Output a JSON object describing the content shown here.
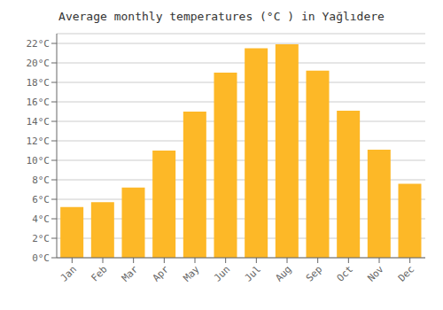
{
  "chart_data": {
    "type": "bar",
    "title": "Average monthly temperatures (°C ) in Yağlıdere",
    "categories": [
      "Jan",
      "Feb",
      "Mar",
      "Apr",
      "May",
      "Jun",
      "Jul",
      "Aug",
      "Sep",
      "Oct",
      "Nov",
      "Dec"
    ],
    "values": [
      5.2,
      5.7,
      7.2,
      11.0,
      15.0,
      19.0,
      21.5,
      21.9,
      19.2,
      15.1,
      11.1,
      7.6
    ],
    "color": "#FDB827",
    "ylim": [
      0,
      23
    ],
    "yticks": [
      {
        "value": 0,
        "label": "0°C"
      },
      {
        "value": 2,
        "label": "2°C"
      },
      {
        "value": 4,
        "label": "4°C"
      },
      {
        "value": 6,
        "label": "6°C"
      },
      {
        "value": 8,
        "label": "8°C"
      },
      {
        "value": 10,
        "label": "10°C"
      },
      {
        "value": 12,
        "label": "12°C"
      },
      {
        "value": 14,
        "label": "14°C"
      },
      {
        "value": 16,
        "label": "16°C"
      },
      {
        "value": 18,
        "label": "18°C"
      },
      {
        "value": 20,
        "label": "20°C"
      },
      {
        "value": 22,
        "label": "22°C"
      }
    ],
    "grid": true
  }
}
